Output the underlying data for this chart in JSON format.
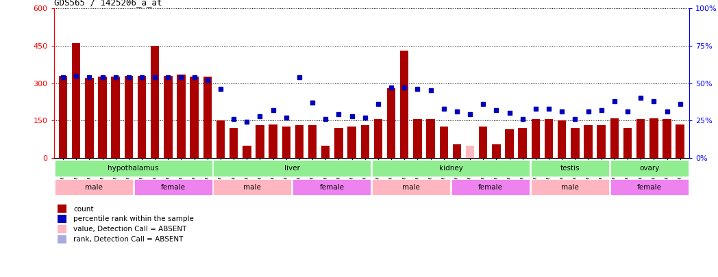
{
  "title": "GDS565 / 1425206_a_at",
  "samples": [
    "GSM19215",
    "GSM19216",
    "GSM19217",
    "GSM19218",
    "GSM19219",
    "GSM19220",
    "GSM19221",
    "GSM19222",
    "GSM19223",
    "GSM19224",
    "GSM19225",
    "GSM19226",
    "GSM19227",
    "GSM19228",
    "GSM19229",
    "GSM19230",
    "GSM19231",
    "GSM19232",
    "GSM19233",
    "GSM19234",
    "GSM19235",
    "GSM19236",
    "GSM19237",
    "GSM19238",
    "GSM19239",
    "GSM19240",
    "GSM19241",
    "GSM19242",
    "GSM19243",
    "GSM19244",
    "GSM19245",
    "GSM19246",
    "GSM19247",
    "GSM19248",
    "GSM19249",
    "GSM19250",
    "GSM19251",
    "GSM19252",
    "GSM19253",
    "GSM19254",
    "GSM19255",
    "GSM19256",
    "GSM19257",
    "GSM19258",
    "GSM19259",
    "GSM19260",
    "GSM19261",
    "GSM19262"
  ],
  "count": [
    330,
    460,
    320,
    325,
    325,
    330,
    330,
    450,
    330,
    335,
    325,
    325,
    150,
    120,
    50,
    130,
    135,
    125,
    130,
    130,
    50,
    120,
    125,
    130,
    155,
    280,
    430,
    155,
    155,
    125,
    55,
    50,
    125,
    55,
    115,
    120,
    155,
    155,
    150,
    120,
    130,
    130,
    160,
    120,
    155,
    160,
    155,
    135
  ],
  "count_absent": [
    false,
    false,
    false,
    false,
    false,
    false,
    false,
    false,
    false,
    false,
    false,
    false,
    false,
    false,
    false,
    false,
    false,
    false,
    false,
    false,
    false,
    false,
    false,
    false,
    false,
    false,
    false,
    false,
    false,
    false,
    false,
    true,
    false,
    false,
    false,
    false,
    false,
    false,
    false,
    false,
    false,
    false,
    false,
    false,
    false,
    false,
    false,
    false
  ],
  "count_pink": [
    false,
    false,
    false,
    false,
    false,
    false,
    false,
    false,
    false,
    false,
    false,
    false,
    false,
    false,
    false,
    false,
    false,
    false,
    false,
    false,
    false,
    false,
    false,
    false,
    false,
    false,
    false,
    false,
    false,
    false,
    false,
    true,
    false,
    false,
    false,
    false,
    false,
    false,
    false,
    false,
    false,
    false,
    false,
    false,
    false,
    false,
    false,
    false
  ],
  "percentile_pct": [
    54,
    55,
    54,
    54,
    54,
    54,
    54,
    54,
    54,
    54,
    54,
    52,
    46,
    26,
    24,
    28,
    32,
    27,
    54,
    37,
    26,
    29,
    28,
    27,
    36,
    47,
    47,
    46,
    45,
    33,
    31,
    29,
    36,
    32,
    30,
    26,
    33,
    33,
    31,
    26,
    31,
    32,
    38,
    31,
    40,
    38,
    31,
    36
  ],
  "percentile_absent": [
    false,
    false,
    false,
    false,
    false,
    false,
    false,
    false,
    false,
    false,
    false,
    false,
    false,
    false,
    false,
    false,
    false,
    false,
    false,
    false,
    false,
    false,
    false,
    false,
    false,
    false,
    false,
    false,
    false,
    false,
    false,
    false,
    false,
    false,
    false,
    false,
    false,
    false,
    false,
    false,
    false,
    false,
    false,
    false,
    false,
    false,
    false,
    false
  ],
  "tissue_groups": [
    {
      "label": "hypothalamus",
      "start": 0,
      "end": 12
    },
    {
      "label": "liver",
      "start": 12,
      "end": 24
    },
    {
      "label": "kidney",
      "start": 24,
      "end": 36
    },
    {
      "label": "testis",
      "start": 36,
      "end": 42
    },
    {
      "label": "ovary",
      "start": 42,
      "end": 48
    }
  ],
  "gender_groups": [
    {
      "label": "male",
      "start": 0,
      "end": 6,
      "color": "#FFB6C1"
    },
    {
      "label": "female",
      "start": 6,
      "end": 12,
      "color": "#EE82EE"
    },
    {
      "label": "male",
      "start": 12,
      "end": 18,
      "color": "#FFB6C1"
    },
    {
      "label": "female",
      "start": 18,
      "end": 24,
      "color": "#EE82EE"
    },
    {
      "label": "male",
      "start": 24,
      "end": 30,
      "color": "#FFB6C1"
    },
    {
      "label": "female",
      "start": 30,
      "end": 36,
      "color": "#EE82EE"
    },
    {
      "label": "male",
      "start": 36,
      "end": 42,
      "color": "#FFB6C1"
    },
    {
      "label": "female",
      "start": 42,
      "end": 48,
      "color": "#EE82EE"
    }
  ],
  "ylim_left": [
    0,
    600
  ],
  "ylim_right": [
    0,
    100
  ],
  "yticks_left": [
    0,
    150,
    300,
    450,
    600
  ],
  "yticks_right": [
    0,
    25,
    50,
    75,
    100
  ],
  "bar_color": "#AA0000",
  "bar_absent_color": "#FFB6C1",
  "dot_color": "#0000BB",
  "dot_absent_color": "#AAAADD",
  "tissue_color": "#90EE90",
  "background_color": "#FFFFFF"
}
